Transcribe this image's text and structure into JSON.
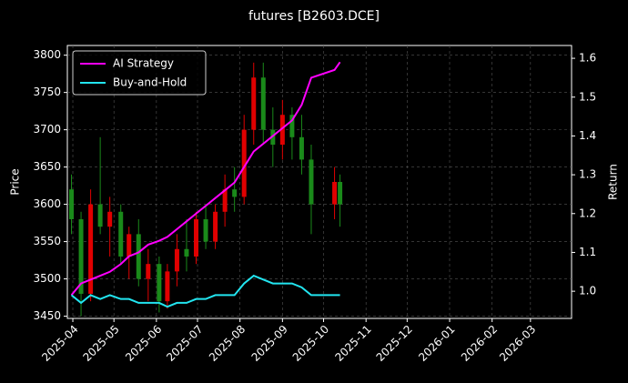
{
  "chart_data": {
    "type": "candlestick",
    "title": "futures [B2603.DCE]",
    "ylabel": "Price",
    "y2label": "Return",
    "x": [
      "2025-03-31",
      "2025-04-07",
      "2025-04-14",
      "2025-04-21",
      "2025-04-28",
      "2025-05-06",
      "2025-05-12",
      "2025-05-19",
      "2025-05-26",
      "2025-06-03",
      "2025-06-09",
      "2025-06-16",
      "2025-06-23",
      "2025-06-30",
      "2025-07-07",
      "2025-07-14",
      "2025-07-21",
      "2025-07-28",
      "2025-08-04",
      "2025-08-11",
      "2025-08-18",
      "2025-08-25",
      "2025-09-01",
      "2025-09-08",
      "2025-09-15",
      "2025-09-22",
      "2025-10-09",
      "2025-10-13"
    ],
    "open": [
      3620,
      3580,
      3480,
      3600,
      3570,
      3590,
      3530,
      3560,
      3500,
      3520,
      3470,
      3510,
      3540,
      3530,
      3580,
      3550,
      3590,
      3620,
      3610,
      3700,
      3770,
      3700,
      3680,
      3720,
      3690,
      3660,
      3600,
      3630
    ],
    "high": [
      3640,
      3590,
      3620,
      3690,
      3610,
      3600,
      3570,
      3580,
      3540,
      3530,
      3520,
      3560,
      3580,
      3590,
      3600,
      3600,
      3640,
      3650,
      3720,
      3790,
      3790,
      3730,
      3740,
      3730,
      3720,
      3680,
      3650,
      3640
    ],
    "low": [
      3560,
      3450,
      3470,
      3560,
      3530,
      3520,
      3500,
      3490,
      3470,
      3455,
      3460,
      3490,
      3510,
      3520,
      3540,
      3540,
      3570,
      3590,
      3600,
      3680,
      3680,
      3650,
      3660,
      3660,
      3640,
      3560,
      3580,
      3570
    ],
    "close": [
      3580,
      3480,
      3600,
      3570,
      3590,
      3530,
      3560,
      3500,
      3520,
      3470,
      3510,
      3540,
      3530,
      3580,
      3550,
      3590,
      3620,
      3610,
      3700,
      3770,
      3700,
      3680,
      3720,
      3690,
      3660,
      3600,
      3630,
      3600
    ],
    "up_color": "#e00000",
    "down_color": "#1a8a1a",
    "series": [
      {
        "name": "AI Strategy",
        "color": "#ff00ff",
        "axis": "y2",
        "values": [
          0.99,
          1.02,
          1.03,
          1.04,
          1.05,
          1.07,
          1.09,
          1.1,
          1.12,
          1.13,
          1.14,
          1.16,
          1.18,
          1.2,
          1.22,
          1.24,
          1.26,
          1.28,
          1.32,
          1.36,
          1.38,
          1.4,
          1.42,
          1.44,
          1.48,
          1.55,
          1.57,
          1.59
        ]
      },
      {
        "name": "Buy-and-Hold",
        "color": "#22e5f0",
        "axis": "y2",
        "values": [
          0.99,
          0.97,
          0.99,
          0.98,
          0.99,
          0.98,
          0.98,
          0.97,
          0.97,
          0.97,
          0.96,
          0.97,
          0.97,
          0.98,
          0.98,
          0.99,
          0.99,
          0.99,
          1.02,
          1.04,
          1.03,
          1.02,
          1.02,
          1.02,
          1.01,
          0.99,
          0.99,
          0.99
        ]
      }
    ],
    "xlim": [
      "2025-03-28",
      "2026-03-31"
    ],
    "xticks": [
      {
        "value": "2025-04-01",
        "label": "2025-04"
      },
      {
        "value": "2025-05-01",
        "label": "2025-05"
      },
      {
        "value": "2025-06-01",
        "label": "2025-06"
      },
      {
        "value": "2025-07-01",
        "label": "2025-07"
      },
      {
        "value": "2025-08-01",
        "label": "2025-08"
      },
      {
        "value": "2025-09-01",
        "label": "2025-09"
      },
      {
        "value": "2025-10-01",
        "label": "2025-10"
      },
      {
        "value": "2025-11-01",
        "label": "2025-11"
      },
      {
        "value": "2025-12-01",
        "label": "2025-12"
      },
      {
        "value": "2026-01-01",
        "label": "2026-01"
      },
      {
        "value": "2026-02-01",
        "label": "2026-02"
      },
      {
        "value": "2026-03-01",
        "label": "2026-03"
      }
    ],
    "ylim": [
      3447,
      3813
    ],
    "yticks": [
      3450,
      3500,
      3550,
      3600,
      3650,
      3700,
      3750,
      3800
    ],
    "y2lim": [
      0.93,
      1.633
    ],
    "y2ticks": [
      {
        "value": 1.0,
        "label": "1.0"
      },
      1.1,
      1.2,
      1.3,
      1.4,
      1.5,
      1.6
    ],
    "grid": true,
    "legend": "upper-left"
  }
}
